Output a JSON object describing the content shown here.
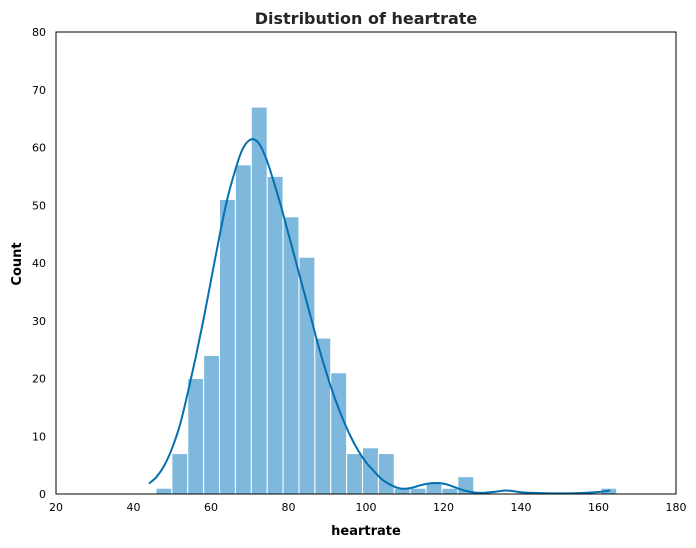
{
  "chart_data": {
    "type": "bar",
    "title": "Distribution of heartrate",
    "xlabel": "heartrate",
    "ylabel": "Count",
    "xlim": [
      20,
      180
    ],
    "ylim": [
      0,
      80
    ],
    "xticks": [
      20,
      40,
      60,
      80,
      100,
      120,
      140,
      160,
      180
    ],
    "yticks": [
      0,
      10,
      20,
      30,
      40,
      50,
      60,
      70,
      80
    ],
    "grid": false,
    "bins": [
      {
        "start": 45.8,
        "end": 49.9,
        "count": 1
      },
      {
        "start": 49.9,
        "end": 54.0,
        "count": 7
      },
      {
        "start": 54.0,
        "end": 58.1,
        "count": 20
      },
      {
        "start": 58.1,
        "end": 62.2,
        "count": 24
      },
      {
        "start": 62.2,
        "end": 66.3,
        "count": 51
      },
      {
        "start": 66.3,
        "end": 70.4,
        "count": 57
      },
      {
        "start": 70.4,
        "end": 74.5,
        "count": 67
      },
      {
        "start": 74.5,
        "end": 78.6,
        "count": 55
      },
      {
        "start": 78.6,
        "end": 82.7,
        "count": 48
      },
      {
        "start": 82.7,
        "end": 86.8,
        "count": 41
      },
      {
        "start": 86.8,
        "end": 90.9,
        "count": 27
      },
      {
        "start": 90.9,
        "end": 95.0,
        "count": 21
      },
      {
        "start": 95.0,
        "end": 99.1,
        "count": 7
      },
      {
        "start": 99.1,
        "end": 103.2,
        "count": 8
      },
      {
        "start": 103.2,
        "end": 107.3,
        "count": 7
      },
      {
        "start": 107.3,
        "end": 111.4,
        "count": 1
      },
      {
        "start": 111.4,
        "end": 115.5,
        "count": 1
      },
      {
        "start": 115.5,
        "end": 119.6,
        "count": 2
      },
      {
        "start": 119.6,
        "end": 123.7,
        "count": 1
      },
      {
        "start": 123.7,
        "end": 127.8,
        "count": 3
      },
      {
        "start": 160.6,
        "end": 164.7,
        "count": 1
      }
    ],
    "kde": {
      "x": [
        44,
        46,
        48,
        50,
        52,
        54,
        56,
        58,
        60,
        62,
        64,
        66,
        68,
        70,
        72,
        74,
        76,
        78,
        80,
        82,
        84,
        86,
        88,
        90,
        92,
        94,
        96,
        98,
        100,
        102,
        104,
        106,
        108,
        110,
        112,
        114,
        116,
        118,
        120,
        122,
        124,
        126,
        128,
        130,
        132,
        134,
        136,
        138,
        140,
        145,
        150,
        155,
        160,
        163
      ],
      "y": [
        1.8,
        3,
        5,
        8,
        12,
        17.5,
        23.5,
        30,
        37,
        44,
        50.5,
        55.5,
        59.5,
        61.3,
        61,
        58.5,
        54.5,
        50,
        45,
        40,
        35,
        30,
        25,
        20.5,
        16.5,
        13,
        10,
        7.5,
        5.5,
        4,
        2.6,
        1.7,
        1.1,
        0.9,
        1.1,
        1.5,
        1.8,
        1.9,
        1.8,
        1.4,
        0.9,
        0.5,
        0.25,
        0.2,
        0.3,
        0.45,
        0.6,
        0.5,
        0.3,
        0.15,
        0.1,
        0.15,
        0.35,
        0.6
      ]
    },
    "colors": {
      "bar_fill": "#7eb8dc",
      "bar_edge": "#ffffff",
      "kde_line": "#0570b0",
      "axes": "#000000"
    }
  }
}
